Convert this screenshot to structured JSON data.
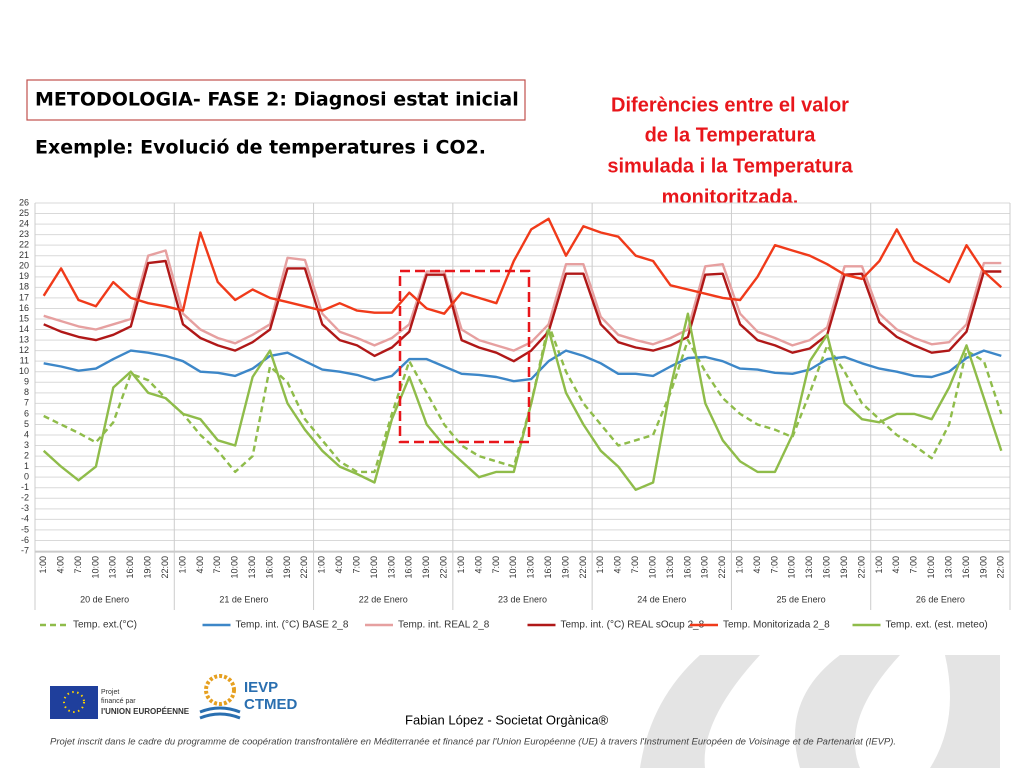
{
  "header": {
    "title": "METODOLOGIA- FASE 2: Diagnosi estat inicial",
    "subtitle": "Exemple: Evolució de temperatures i CO2.",
    "annotation": [
      "Diferències entre el valor",
      "de la Temperatura",
      "simulada i la Temperatura",
      "monitoritzada."
    ]
  },
  "chart_data": {
    "type": "line",
    "categories": [
      "1:00",
      "4:00",
      "7:00",
      "10:00",
      "13:00",
      "16:00",
      "19:00",
      "22:00",
      "1:00",
      "4:00",
      "7:00",
      "10:00",
      "13:00",
      "16:00",
      "19:00",
      "22:00",
      "1:00",
      "4:00",
      "7:00",
      "10:00",
      "13:00",
      "16:00",
      "19:00",
      "22:00",
      "1:00",
      "4:00",
      "7:00",
      "10:00",
      "13:00",
      "16:00",
      "19:00",
      "22:00",
      "1:00",
      "4:00",
      "7:00",
      "10:00",
      "13:00",
      "16:00",
      "19:00",
      "22:00",
      "1:00",
      "4:00",
      "7:00",
      "10:00",
      "13:00",
      "16:00",
      "19:00",
      "22:00",
      "1:00",
      "4:00",
      "7:00",
      "10:00",
      "13:00",
      "16:00",
      "19:00",
      "22:00"
    ],
    "days": [
      "20 de Enero",
      "21 de Enero",
      "22 de Enero",
      "23 de Enero",
      "24 de Enero",
      "25 de Enero",
      "26 de Enero"
    ],
    "ylim": [
      -7,
      26
    ],
    "yticks": [
      -7,
      -6,
      -5,
      -4,
      -3,
      -2,
      -1,
      0,
      1,
      2,
      3,
      4,
      5,
      6,
      7,
      8,
      9,
      10,
      11,
      12,
      13,
      14,
      15,
      16,
      17,
      18,
      19,
      20,
      21,
      22,
      23,
      24,
      25,
      26
    ],
    "grid": true,
    "series": [
      {
        "name": "Temp. ext.(°C)",
        "color": "#8fbc4a",
        "dashed": true,
        "values": [
          5.8,
          5,
          4.2,
          3.3,
          5.2,
          9.8,
          9.2,
          7.5,
          6,
          4,
          2.5,
          0.5,
          2,
          10.5,
          9,
          5.5,
          3.5,
          1.5,
          0.5,
          0.5,
          6,
          11,
          8,
          5,
          3,
          2,
          1.5,
          1,
          7,
          14.5,
          10,
          7,
          5,
          3,
          3.5,
          4,
          8,
          13,
          10,
          7.5,
          6,
          5,
          4.5,
          3.8,
          8,
          12.5,
          10,
          7,
          5.5,
          4,
          3,
          1.8,
          5,
          12,
          11,
          6
        ]
      },
      {
        "name": "Temp. int. (°C) BASE 2_8",
        "color": "#3d87c8",
        "dashed": false,
        "values": [
          10.8,
          10.5,
          10.1,
          10.3,
          11.2,
          12,
          11.8,
          11.5,
          11,
          10,
          9.9,
          9.6,
          10.3,
          11.5,
          11.8,
          11,
          10.2,
          10,
          9.7,
          9.2,
          9.6,
          11.2,
          11.2,
          10.5,
          9.8,
          9.7,
          9.5,
          9.1,
          9.3,
          11,
          12,
          11.5,
          10.8,
          9.8,
          9.8,
          9.6,
          10.5,
          11.3,
          11.4,
          11,
          10.3,
          10.2,
          9.9,
          9.8,
          10.2,
          11.2,
          11.4,
          10.8,
          10.3,
          10,
          9.6,
          9.5,
          10,
          11.3,
          12,
          11.5
        ]
      },
      {
        "name": "Temp. int. REAL 2_8",
        "color": "#e6a0a0",
        "dashed": false,
        "values": [
          15.3,
          14.8,
          14.3,
          14,
          14.5,
          15,
          21,
          21.5,
          15.5,
          14,
          13.2,
          12.7,
          13.5,
          14.5,
          20.8,
          20.6,
          15.5,
          13.8,
          13.2,
          12.5,
          13.2,
          14.5,
          19.5,
          19.5,
          14,
          13,
          12.5,
          12,
          12.8,
          14.5,
          20.2,
          20.2,
          15.2,
          13.5,
          13,
          12.6,
          13.2,
          14,
          20,
          20.2,
          15.5,
          13.8,
          13.2,
          12.5,
          13,
          14.2,
          20,
          20,
          15.5,
          14,
          13.2,
          12.6,
          12.8,
          14.5,
          20.3,
          20.3
        ]
      },
      {
        "name": "Temp. int. (°C) REAL sOcup 2_8",
        "color": "#b01818",
        "dashed": false,
        "values": [
          14.5,
          13.8,
          13.3,
          13,
          13.5,
          14.3,
          20.3,
          20.5,
          14.5,
          13.2,
          12.5,
          12,
          12.8,
          14,
          19.8,
          19.8,
          14.5,
          13,
          12.5,
          11.5,
          12.3,
          13.8,
          19.2,
          19.2,
          13,
          12.3,
          11.8,
          11,
          12,
          13.8,
          19.3,
          19.3,
          14.5,
          12.8,
          12.3,
          12,
          12.5,
          13.3,
          19.2,
          19.3,
          14.5,
          13,
          12.5,
          11.8,
          12.2,
          13.5,
          19.2,
          19.3,
          14.7,
          13.3,
          12.5,
          11.8,
          12,
          13.8,
          19.5,
          19.5
        ]
      },
      {
        "name": "Temp. Monitorizada 2_8",
        "color": "#f03a1a",
        "dashed": false,
        "values": [
          17.2,
          19.8,
          16.8,
          16.2,
          18.5,
          17,
          16.5,
          16.2,
          15.8,
          23.2,
          18.5,
          16.8,
          17.8,
          17,
          16.6,
          16.2,
          15.8,
          16.5,
          15.8,
          15.6,
          15.6,
          17.5,
          16,
          15.5,
          17.5,
          17,
          16.5,
          20.5,
          23.5,
          24.5,
          21,
          23.8,
          23.2,
          22.8,
          21,
          20.5,
          18.2,
          17.8,
          17.4,
          17,
          16.8,
          19,
          22,
          21.5,
          21,
          20.2,
          19.2,
          18.8,
          20.5,
          23.5,
          20.5,
          19.5,
          18.5,
          22,
          19.5,
          18
        ]
      },
      {
        "name": "Temp. ext. (est. meteo)",
        "color": "#8fbc4a",
        "dashed": false,
        "values": [
          2.5,
          1,
          -0.3,
          1,
          8.5,
          10,
          8,
          7.5,
          6,
          5.5,
          3.5,
          3,
          9.5,
          12,
          7,
          4.5,
          2.5,
          1,
          0.3,
          -0.5,
          5.5,
          9.5,
          5,
          3,
          1.5,
          0,
          0.5,
          0.5,
          7,
          14,
          8,
          5,
          2.5,
          1,
          -1.2,
          -0.5,
          8.5,
          15.5,
          7,
          3.5,
          1.5,
          0.5,
          0.5,
          4,
          11,
          13.5,
          7,
          5.5,
          5.2,
          6,
          6,
          5.5,
          8.5,
          12.5,
          7.5,
          2.5
        ]
      }
    ]
  },
  "footer": {
    "author": "Fabian López -  Societat Orgànica®",
    "eu_lines": [
      "Projet",
      "financé par",
      "l'UNION EUROPÉENNE"
    ],
    "ievp_lines": [
      "IEVP",
      "CTMED"
    ],
    "disclaimer": "Projet inscrit dans le cadre du programme de coopération transfrontalière en Méditerranée et financé par l'Union Européenne (UE) à travers l'Instrument Européen de Voisinage et de Partenariat (IEVP)."
  }
}
